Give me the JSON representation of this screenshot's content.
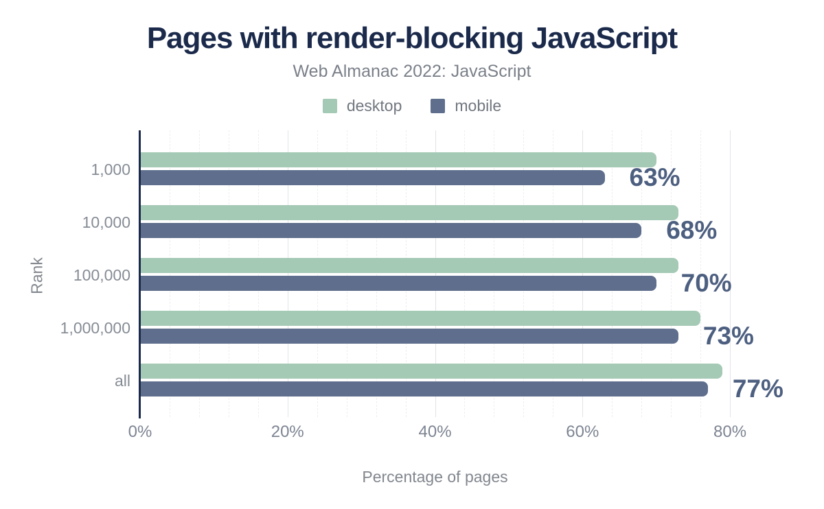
{
  "title": "Pages with render-blocking JavaScript",
  "subtitle": "Web Almanac 2022: JavaScript",
  "legend": [
    {
      "label": "desktop",
      "color": "#a4c9b5"
    },
    {
      "label": "mobile",
      "color": "#5e6e8c"
    }
  ],
  "chart_data": {
    "type": "bar",
    "orientation": "horizontal",
    "title": "Pages with render-blocking JavaScript",
    "subtitle": "Web Almanac 2022: JavaScript",
    "categories": [
      "1,000",
      "10,000",
      "100,000",
      "1,000,000",
      "all"
    ],
    "series": [
      {
        "name": "desktop",
        "color": "#a4c9b5",
        "values": [
          70,
          73,
          73,
          76,
          79
        ]
      },
      {
        "name": "mobile",
        "color": "#5e6e8c",
        "values": [
          63,
          68,
          70,
          73,
          77
        ]
      }
    ],
    "bar_labels": [
      "63%",
      "68%",
      "70%",
      "73%",
      "77%"
    ],
    "bar_label_series": "mobile",
    "xlabel": "Percentage of pages",
    "ylabel": "Rank",
    "x_ticks": [
      "0%",
      "20%",
      "40%",
      "60%",
      "80%"
    ],
    "x_tick_values": [
      0,
      20,
      40,
      60,
      80
    ],
    "xlim": [
      0,
      84
    ],
    "gridlines": {
      "minor_every": 4,
      "major_every": 20,
      "grid": "on"
    },
    "legend_position": "top"
  },
  "colors": {
    "title": "#1b2a4b",
    "axis_line": "#1b2a4b",
    "data_label": "#4d5f80",
    "background": "#ffffff"
  }
}
